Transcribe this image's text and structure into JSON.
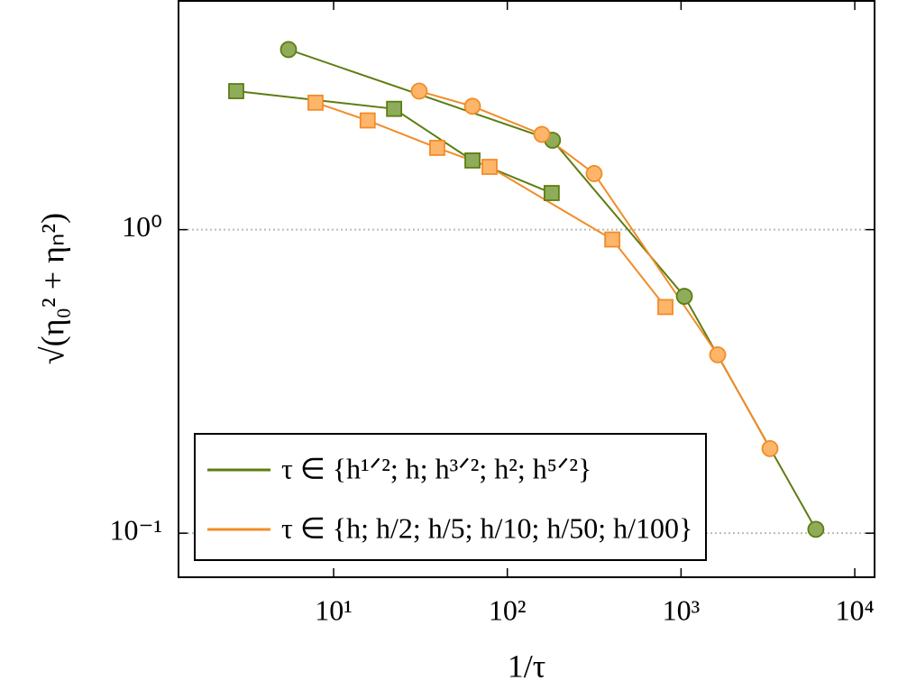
{
  "chart_data": {
    "type": "line",
    "x_label": "1/τ",
    "y_label": "√(η₀² + ηₙ²)",
    "log_x": true,
    "log_y": true,
    "grid": "y-major",
    "legend": "lower left",
    "xlim": [
      1.28,
      13000
    ],
    "ylim": [
      0.0716,
      5.67
    ],
    "xticks": [
      {
        "value": 10,
        "label": "10¹"
      },
      {
        "value": 100,
        "label": "10²"
      },
      {
        "value": 1000,
        "label": "10³"
      },
      {
        "value": 10000,
        "label": "10⁴"
      }
    ],
    "yticks": [
      {
        "value": 0.1,
        "label": "10⁻¹"
      },
      {
        "value": 1,
        "label": "10⁰"
      }
    ],
    "series": [
      {
        "name": "τ ∈ {h¹ᐟ²; h; h³ᐟ²; h²; h⁵ᐟ²}",
        "color": "#5e7d12",
        "fill": "#8fac5a",
        "subsets": [
          {
            "marker": "circle",
            "x": [
              5.5,
              182,
              1045,
              5970
            ],
            "values": [
              3.92,
              1.97,
              0.603,
              0.103
            ]
          },
          {
            "marker": "square",
            "x": [
              2.75,
              22.3,
              63,
              180
            ],
            "values": [
              2.86,
              2.5,
              1.69,
              1.32
            ]
          }
        ]
      },
      {
        "name": "τ ∈ {h; h/2; h/5; h/10; h/50; h/100}",
        "color": "#f28c28",
        "fill": "#fdb56a",
        "subsets": [
          {
            "marker": "circle",
            "x": [
              31.1,
              63,
              158,
              316,
              1625,
              3250
            ],
            "values": [
              2.86,
              2.55,
              2.06,
              1.53,
              0.387,
              0.19
            ]
          },
          {
            "marker": "square",
            "x": [
              7.87,
              15.7,
              39.5,
              79,
              402,
              813
            ],
            "values": [
              2.62,
              2.29,
              1.86,
              1.61,
              0.928,
              0.556
            ]
          }
        ]
      }
    ]
  }
}
